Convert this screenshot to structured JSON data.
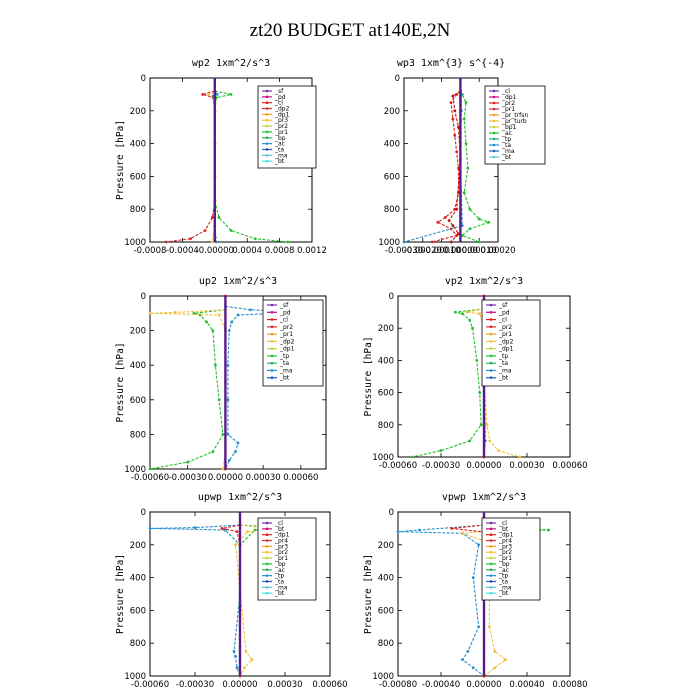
{
  "figure_title": "zt20  BUDGET at140E,2N",
  "chart_data": [
    {
      "type": "line",
      "title": "wp2   1xm^2/s^3",
      "ylabel": "Pressure [hPa]",
      "xlim": [
        -0.0008,
        0.0012
      ],
      "ylim": [
        1000,
        0
      ],
      "xticks": [
        "-0.0008",
        "-0.0004",
        "-0.00000",
        "0.0004",
        "0.0008",
        "0.0012"
      ],
      "xtick_values": [
        -0.0008,
        -0.0004,
        0,
        0.0004,
        0.0008,
        0.0012
      ],
      "yticks": [
        0,
        200,
        400,
        600,
        800,
        1000
      ],
      "legend": [
        "_sf",
        "_pd",
        "_cl",
        "_dp2",
        "_dp1",
        "_pr3",
        "_pr2",
        "_pr1",
        "_bp",
        "_ac",
        "_ta",
        "_ma",
        "_bt"
      ],
      "series": [
        {
          "name": "_pr1",
          "color": "#22c02a",
          "pressure": [
            80,
            100,
            120,
            200,
            400,
            600,
            750,
            850,
            930,
            980,
            1000
          ],
          "values": [
            0,
            0.0002,
            2e-05,
            0,
            0,
            0,
            0,
            5e-05,
            0.0002,
            0.0005,
            0.0009
          ]
        },
        {
          "name": "_dp2",
          "color": "#e02020",
          "pressure": [
            80,
            100,
            120,
            200,
            400,
            600,
            750,
            850,
            930,
            980,
            1000
          ],
          "values": [
            0,
            -0.00015,
            -2e-05,
            0,
            0,
            0,
            0,
            -3e-05,
            -0.00012,
            -0.0003,
            -0.0006
          ]
        },
        {
          "name": "_pr2",
          "color": "#f0c040",
          "pressure": [
            90,
            100,
            130,
            200,
            500,
            900,
            1000
          ],
          "values": [
            0,
            -8e-05,
            0,
            0,
            0,
            0,
            -3e-05
          ]
        },
        {
          "name": "_ac",
          "color": "#2a8fd0",
          "pressure": [
            80,
            100,
            110,
            200,
            500,
            900,
            1000
          ],
          "values": [
            0,
            3e-05,
            -2e-05,
            0,
            0,
            0,
            2e-05
          ]
        },
        {
          "name": "_bt",
          "color": "#5a1a8a",
          "pressure": [
            0,
            1000
          ],
          "values": [
            0,
            0
          ]
        }
      ]
    },
    {
      "type": "line",
      "title": "wp3   1xm^{3} s^{-4}",
      "ylabel": "",
      "xlim": [
        -0.0003,
        0.0002
      ],
      "ylim": [
        1000,
        0
      ],
      "xticks": [
        "-0.00030",
        "-0.00020",
        "-0.00010",
        "0.00000",
        "0.00010",
        "0.00020"
      ],
      "xtick_values": [
        -0.0003,
        -0.0002,
        -0.0001,
        0,
        0.0001,
        0.0002
      ],
      "yticks": [
        0,
        200,
        400,
        600,
        800,
        1000
      ],
      "legend": [
        "_cl",
        "_dp1",
        "_pr2",
        "_pr1",
        "_pr_trfsn",
        "_pr_turb",
        "_bp1",
        "_ac",
        "_tp",
        "_ta",
        "_ma",
        "_bt"
      ],
      "series": [
        {
          "name": "_pr2",
          "color": "#22c02a",
          "pressure": [
            80,
            100,
            150,
            250,
            400,
            550,
            700,
            800,
            860,
            880,
            920,
            960,
            1000
          ],
          "values": [
            0,
            1e-05,
            3e-05,
            2e-05,
            3e-05,
            4e-05,
            2e-05,
            5e-05,
            0.0001,
            0.00015,
            5e-05,
            1e-05,
            0.0001
          ]
        },
        {
          "name": "_dp1",
          "color": "#e02020",
          "pressure": [
            80,
            100,
            150,
            250,
            350,
            450,
            550,
            700,
            800,
            850,
            880,
            920,
            960,
            1000
          ],
          "values": [
            0,
            -2e-05,
            -5e-05,
            -4e-05,
            -3e-05,
            -2e-05,
            -1e-05,
            -1e-05,
            -3e-05,
            -8e-05,
            -0.00012,
            -5e-05,
            -2e-05,
            -0.00015
          ]
        },
        {
          "name": "_cl",
          "color": "#c01010",
          "pressure": [
            80,
            110,
            200,
            300,
            500,
            800,
            870,
            900,
            950,
            1000
          ],
          "values": [
            0,
            -4e-05,
            -3e-05,
            -1e-05,
            0,
            -2e-05,
            -6e-05,
            -4e-05,
            -1e-05,
            -5e-05
          ]
        },
        {
          "name": "_ac",
          "color": "#2a8fd0",
          "pressure": [
            80,
            100,
            200,
            500,
            900,
            1000
          ],
          "values": [
            0,
            5e-06,
            5e-06,
            0,
            1e-05,
            -0.0003
          ]
        },
        {
          "name": "_bt",
          "color": "#5a1a8a",
          "pressure": [
            0,
            1000
          ],
          "values": [
            0,
            0
          ]
        }
      ]
    },
    {
      "type": "line",
      "title": "up2   1xm^2/s^3",
      "ylabel": "Pressure [hPa]",
      "xlim": [
        -0.0006,
        0.0008
      ],
      "ylim": [
        1000,
        0
      ],
      "xticks": [
        "-0.00060",
        "-0.00030",
        "0.00000",
        "0.00030",
        "0.00060"
      ],
      "xtick_values": [
        -0.0006,
        -0.0003,
        0,
        0.0003,
        0.0006
      ],
      "yticks": [
        0,
        200,
        400,
        600,
        800,
        1000
      ],
      "legend": [
        "_sf",
        "_pd",
        "_cl",
        "_pr2",
        "_pr1",
        "_dp2",
        "_dp1",
        "_tp",
        "_ta",
        "_ma",
        "_bt"
      ],
      "series": [
        {
          "name": "_tp",
          "color": "#2a8fd0",
          "pressure": [
            60,
            80,
            95,
            100,
            110,
            150,
            200,
            400,
            600,
            800,
            850,
            900,
            950,
            1000
          ],
          "values": [
            0,
            0.0002,
            0.0007,
            0.0004,
            0.0001,
            5e-05,
            3e-05,
            2e-05,
            2e-05,
            2e-05,
            0.0001,
            8e-05,
            3e-05,
            0
          ]
        },
        {
          "name": "_pr1",
          "color": "#22c02a",
          "pressure": [
            80,
            100,
            110,
            150,
            200,
            400,
            600,
            800,
            900,
            960,
            1000
          ],
          "values": [
            0,
            -0.00025,
            -0.0002,
            -0.00015,
            -0.0001,
            -8e-05,
            -5e-05,
            -2e-05,
            -0.0001,
            -0.0003,
            -0.0006
          ]
        },
        {
          "name": "_pr2",
          "color": "#f0c040",
          "pressure": [
            80,
            95,
            100,
            110,
            200,
            500,
            900,
            1000
          ],
          "values": [
            0,
            -0.0004,
            -0.0006,
            -5e-05,
            0,
            0,
            0,
            -2e-05
          ]
        },
        {
          "name": "_cl",
          "color": "#c01010",
          "pressure": [
            0,
            1000
          ],
          "values": [
            0,
            0
          ]
        },
        {
          "name": "_bt",
          "color": "#5a1a8a",
          "pressure": [
            0,
            1000
          ],
          "values": [
            0,
            0
          ]
        }
      ]
    },
    {
      "type": "line",
      "title": "vp2   1xm^2/s^3",
      "ylabel": "Pressure [hPa]",
      "xlim": [
        -0.0006,
        0.0006
      ],
      "ylim": [
        1000,
        0
      ],
      "xticks": [
        "-0.00060",
        "-0.00030",
        "0.00000",
        "0.00030",
        "0.00060"
      ],
      "xtick_values": [
        -0.0006,
        -0.0003,
        0,
        0.0003,
        0.0006
      ],
      "yticks": [
        0,
        200,
        400,
        600,
        800,
        1000
      ],
      "legend": [
        "_sf",
        "_pd",
        "_cl",
        "_pr2",
        "_pr1",
        "_dp2",
        "_dp1",
        "_tp",
        "_ta",
        "_ma",
        "_bt"
      ],
      "series": [
        {
          "name": "_pr1",
          "color": "#22c02a",
          "pressure": [
            80,
            100,
            110,
            150,
            200,
            400,
            600,
            800,
            900,
            960,
            1000
          ],
          "values": [
            0,
            -0.0002,
            -0.00015,
            -0.0001,
            -8e-05,
            -5e-05,
            -3e-05,
            -2e-05,
            -0.0001,
            -0.0003,
            -0.0005
          ]
        },
        {
          "name": "_pr2",
          "color": "#f0c040",
          "pressure": [
            80,
            100,
            110,
            200,
            500,
            800,
            900,
            960,
            1000
          ],
          "values": [
            0,
            -0.00012,
            -3e-05,
            0,
            0,
            2e-05,
            4e-05,
            0.0001,
            0.00025
          ]
        },
        {
          "name": "_tp",
          "color": "#2a8fd0",
          "pressure": [
            80,
            100,
            110,
            200,
            500,
            900,
            1000
          ],
          "values": [
            0,
            5e-05,
            1e-05,
            1e-05,
            0,
            1e-05,
            0
          ]
        },
        {
          "name": "_cl",
          "color": "#c01010",
          "pressure": [
            0,
            1000
          ],
          "values": [
            0,
            0
          ]
        },
        {
          "name": "_bt",
          "color": "#5a1a8a",
          "pressure": [
            0,
            1000
          ],
          "values": [
            0,
            0
          ]
        }
      ]
    },
    {
      "type": "line",
      "title": "upwp   1xm^2/s^3",
      "ylabel": "Pressure [hPa]",
      "xlim": [
        -0.0006,
        0.0006
      ],
      "ylim": [
        1000,
        0
      ],
      "xticks": [
        "-0.00060",
        "-0.00030",
        "0.00000",
        "0.00030",
        "0.00060"
      ],
      "xtick_values": [
        -0.0006,
        -0.0003,
        0,
        0.0003,
        0.0006
      ],
      "yticks": [
        0,
        200,
        400,
        600,
        800,
        1000
      ],
      "legend": [
        "_cl",
        "_bt",
        "_dp1",
        "_pr4",
        "_pr3",
        "_pr2",
        "_pr1",
        "_bp",
        "_ac",
        "_tp",
        "_ta",
        "_ma",
        "_bt"
      ],
      "series": [
        {
          "name": "_tp",
          "color": "#2a8fd0",
          "pressure": [
            80,
            95,
            100,
            110,
            200,
            500,
            850,
            880,
            950,
            1000
          ],
          "values": [
            0,
            -0.0003,
            -0.0006,
            -0.0001,
            0,
            0,
            -4e-05,
            -3e-05,
            -2e-05,
            0
          ]
        },
        {
          "name": "_bp",
          "color": "#22c02a",
          "pressure": [
            80,
            95,
            100,
            110,
            200,
            1000
          ],
          "values": [
            0,
            0.0003,
            0.00045,
            0.0001,
            0,
            0
          ]
        },
        {
          "name": "_pr2",
          "color": "#f0c040",
          "pressure": [
            80,
            100,
            120,
            200,
            850,
            900,
            950,
            1000
          ],
          "values": [
            0,
            0.0002,
            5e-05,
            -3e-05,
            4e-05,
            8e-05,
            3e-05,
            0
          ]
        },
        {
          "name": "_dp1",
          "color": "#e02020",
          "pressure": [
            80,
            100,
            120,
            200,
            1000
          ],
          "values": [
            0,
            -0.00012,
            -2e-05,
            0,
            0
          ]
        },
        {
          "name": "_bt",
          "color": "#5a1a8a",
          "pressure": [
            0,
            1000
          ],
          "values": [
            0,
            0
          ]
        }
      ]
    },
    {
      "type": "line",
      "title": "vpwp   1xm^2/s^3",
      "ylabel": "Pressure [hPa]",
      "xlim": [
        -0.0008,
        0.0008
      ],
      "ylim": [
        1000,
        0
      ],
      "xticks": [
        "-0.00080",
        "-0.00040",
        "0.00000",
        "0.00040",
        "0.00080"
      ],
      "xtick_values": [
        -0.0008,
        -0.0004,
        0,
        0.0004,
        0.0008
      ],
      "yticks": [
        0,
        200,
        400,
        600,
        800,
        1000
      ],
      "legend": [
        "_cl",
        "_bt",
        "_dp1",
        "_pr4",
        "_pr3",
        "_pr2",
        "_pr1",
        "_bp",
        "_ac",
        "_tp",
        "_ta",
        "_ma",
        "_bt"
      ],
      "series": [
        {
          "name": "_tp",
          "color": "#2a8fd0",
          "pressure": [
            80,
            110,
            120,
            130,
            200,
            400,
            700,
            850,
            900,
            950,
            1000
          ],
          "values": [
            0,
            -0.0006,
            -0.0008,
            -0.0002,
            -5e-05,
            -0.0001,
            -5e-05,
            -0.00015,
            -0.0002,
            -0.0001,
            0
          ]
        },
        {
          "name": "_bp",
          "color": "#22c02a",
          "pressure": [
            80,
            100,
            110,
            130,
            200,
            1000
          ],
          "values": [
            0,
            0.0004,
            0.0006,
            0.0001,
            0,
            0
          ]
        },
        {
          "name": "_pr2",
          "color": "#f0c040",
          "pressure": [
            80,
            100,
            130,
            200,
            400,
            700,
            850,
            900,
            950,
            1000
          ],
          "values": [
            0,
            0.0003,
            -0.0002,
            0.0001,
            5e-05,
            5e-05,
            0.0001,
            0.0002,
            0.0001,
            0
          ]
        },
        {
          "name": "_dp1",
          "color": "#e02020",
          "pressure": [
            80,
            100,
            130,
            200,
            1000
          ],
          "values": [
            0,
            -0.0003,
            0.0001,
            0,
            0
          ]
        },
        {
          "name": "_cl",
          "color": "#c01010",
          "pressure": [
            80,
            110,
            140,
            1000
          ],
          "values": [
            0,
            0.0002,
            0,
            0
          ]
        },
        {
          "name": "_bt",
          "color": "#5a1a8a",
          "pressure": [
            0,
            1000
          ],
          "values": [
            0,
            0
          ]
        }
      ]
    }
  ]
}
